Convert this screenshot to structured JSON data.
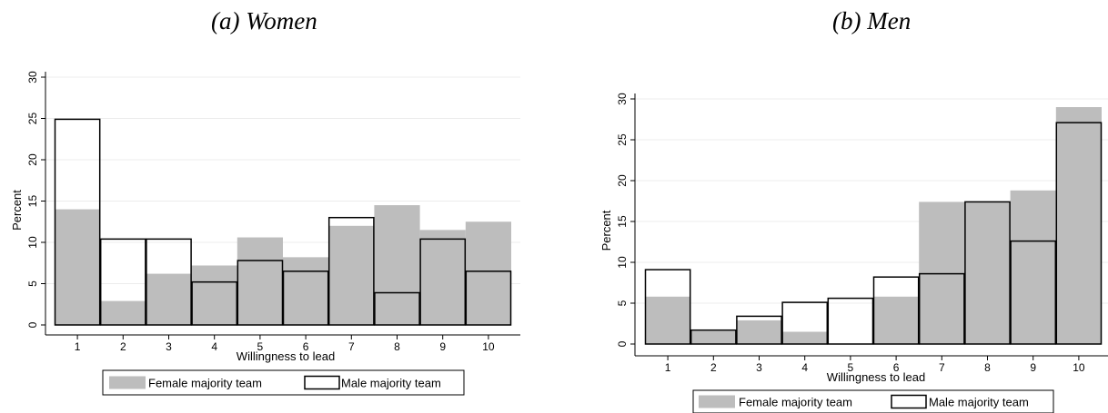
{
  "chart_data": [
    {
      "type": "bar",
      "title": "(a) Women",
      "categories": [
        "1",
        "2",
        "3",
        "4",
        "5",
        "6",
        "7",
        "8",
        "9",
        "10"
      ],
      "series": [
        {
          "name": "Female majority team",
          "values": [
            14.0,
            2.9,
            6.2,
            7.2,
            10.6,
            8.2,
            12.0,
            14.5,
            11.5,
            12.5
          ],
          "color": "#bdbdbd",
          "style": "filled"
        },
        {
          "name": "Male majority team",
          "values": [
            24.9,
            10.4,
            10.4,
            5.2,
            7.8,
            6.5,
            13.0,
            3.9,
            10.4,
            6.5
          ],
          "color": "#000000",
          "style": "outline"
        }
      ],
      "xlabel": "Willingness to lead",
      "ylabel": "Percent",
      "ylim": [
        0,
        30
      ],
      "yticks": [
        "0",
        "5",
        "10",
        "15",
        "20",
        "25",
        "30"
      ],
      "grid": true,
      "legend": "bottom"
    },
    {
      "type": "bar",
      "title": "(b) Men",
      "categories": [
        "1",
        "2",
        "3",
        "4",
        "5",
        "6",
        "7",
        "8",
        "9",
        "10"
      ],
      "series": [
        {
          "name": "Female majority team",
          "values": [
            5.8,
            1.6,
            2.9,
            1.5,
            0,
            5.8,
            17.4,
            17.4,
            18.8,
            29.0
          ],
          "color": "#bdbdbd",
          "style": "filled"
        },
        {
          "name": "Male majority team",
          "values": [
            9.1,
            1.7,
            3.4,
            5.1,
            5.6,
            8.2,
            8.6,
            17.4,
            12.6,
            27.1
          ],
          "color": "#000000",
          "style": "outline"
        }
      ],
      "xlabel": "Willingness to lead",
      "ylabel": "Percent",
      "ylim": [
        0,
        30
      ],
      "yticks": [
        "0",
        "5",
        "10",
        "15",
        "20",
        "25",
        "30"
      ],
      "grid": true,
      "legend": "bottom"
    }
  ]
}
